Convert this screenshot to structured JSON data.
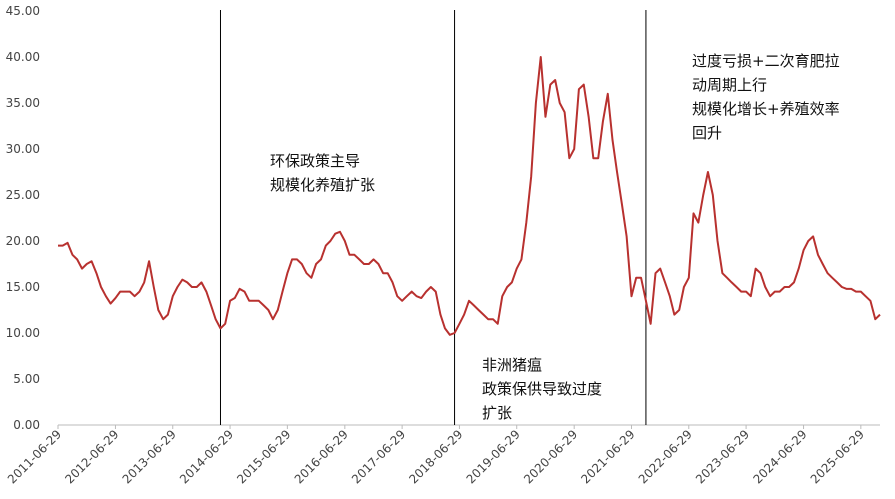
{
  "chart_data": {
    "type": "line",
    "color": "#b8312f",
    "ylim": [
      0,
      45
    ],
    "yticks": [
      {
        "value": 0,
        "label": "0.00"
      },
      {
        "value": 5,
        "label": "5.00"
      },
      {
        "value": 10,
        "label": "10.00"
      },
      {
        "value": 15,
        "label": "15.00"
      },
      {
        "value": 20,
        "label": "20.00"
      },
      {
        "value": 25,
        "label": "25.00"
      },
      {
        "value": 30,
        "label": "30.00"
      },
      {
        "value": 35,
        "label": "35.00"
      },
      {
        "value": 40,
        "label": "40.00"
      },
      {
        "value": 45,
        "label": "45.00"
      }
    ],
    "xlim": [
      "2011-06-29",
      "2025-10-29"
    ],
    "xticks": [
      "2011-06-29",
      "2012-06-29",
      "2013-06-29",
      "2014-06-29",
      "2015-06-29",
      "2016-06-29",
      "2017-06-29",
      "2018-06-29",
      "2019-06-29",
      "2020-06-29",
      "2021-06-29",
      "2022-06-29",
      "2023-06-29",
      "2024-06-29",
      "2025-06-29"
    ],
    "vlines": [
      "2014-04-29",
      "2018-05-29",
      "2021-09-29"
    ],
    "annotations": [
      [
        "环保政策主导",
        "规模化养殖扩张"
      ],
      [
        "非洲猪瘟",
        "政策保供导致过度",
        "扩张"
      ],
      [
        "过度亏损+二次育肥拉",
        "动周期上行",
        "规模化增长+养殖效率",
        "回升"
      ]
    ],
    "x": [
      "2011-06-29",
      "2011-07-29",
      "2011-08-29",
      "2011-09-29",
      "2011-10-29",
      "2011-11-29",
      "2011-12-29",
      "2012-01-29",
      "2012-02-29",
      "2012-03-29",
      "2012-04-29",
      "2012-05-29",
      "2012-06-29",
      "2012-07-29",
      "2012-08-29",
      "2012-09-29",
      "2012-10-29",
      "2012-11-29",
      "2012-12-29",
      "2013-01-29",
      "2013-02-28",
      "2013-03-29",
      "2013-04-29",
      "2013-05-29",
      "2013-06-29",
      "2013-07-29",
      "2013-08-29",
      "2013-09-29",
      "2013-10-29",
      "2013-11-29",
      "2013-12-29",
      "2014-01-29",
      "2014-02-28",
      "2014-03-29",
      "2014-04-29",
      "2014-05-29",
      "2014-06-29",
      "2014-07-29",
      "2014-08-29",
      "2014-09-29",
      "2014-10-29",
      "2014-11-29",
      "2014-12-29",
      "2015-01-29",
      "2015-02-28",
      "2015-03-29",
      "2015-04-29",
      "2015-05-29",
      "2015-06-29",
      "2015-07-29",
      "2015-08-29",
      "2015-09-29",
      "2015-10-29",
      "2015-11-29",
      "2015-12-29",
      "2016-01-29",
      "2016-02-29",
      "2016-03-29",
      "2016-04-29",
      "2016-05-29",
      "2016-06-29",
      "2016-07-29",
      "2016-08-29",
      "2016-09-29",
      "2016-10-29",
      "2016-11-29",
      "2016-12-29",
      "2017-01-29",
      "2017-02-28",
      "2017-03-29",
      "2017-04-29",
      "2017-05-29",
      "2017-06-29",
      "2017-07-29",
      "2017-08-29",
      "2017-09-29",
      "2017-10-29",
      "2017-11-29",
      "2017-12-29",
      "2018-01-29",
      "2018-02-28",
      "2018-03-29",
      "2018-04-29",
      "2018-05-29",
      "2018-06-29",
      "2018-07-29",
      "2018-08-29",
      "2018-09-29",
      "2018-10-29",
      "2018-11-29",
      "2018-12-29",
      "2019-01-29",
      "2019-02-28",
      "2019-03-29",
      "2019-04-29",
      "2019-05-29",
      "2019-06-29",
      "2019-07-29",
      "2019-08-29",
      "2019-09-29",
      "2019-10-29",
      "2019-11-29",
      "2019-12-29",
      "2020-01-29",
      "2020-02-29",
      "2020-03-29",
      "2020-04-29",
      "2020-05-29",
      "2020-06-29",
      "2020-07-29",
      "2020-08-29",
      "2020-09-29",
      "2020-10-29",
      "2020-11-29",
      "2020-12-29",
      "2021-01-29",
      "2021-02-28",
      "2021-03-29",
      "2021-04-29",
      "2021-05-29",
      "2021-06-29",
      "2021-07-29",
      "2021-08-29",
      "2021-09-29",
      "2021-10-29",
      "2021-11-29",
      "2021-12-29",
      "2022-01-29",
      "2022-02-28",
      "2022-03-29",
      "2022-04-29",
      "2022-05-29",
      "2022-06-29",
      "2022-07-29",
      "2022-08-29",
      "2022-09-29",
      "2022-10-29",
      "2022-11-29",
      "2022-12-29",
      "2023-01-29",
      "2023-02-28",
      "2023-03-29",
      "2023-04-29",
      "2023-05-29",
      "2023-06-29",
      "2023-07-29",
      "2023-08-29",
      "2023-09-29",
      "2023-10-29",
      "2023-11-29",
      "2023-12-29",
      "2024-01-29",
      "2024-02-29",
      "2024-03-29",
      "2024-04-29",
      "2024-05-29",
      "2024-06-29",
      "2024-07-29",
      "2024-08-29",
      "2024-09-29",
      "2024-10-29",
      "2024-11-29",
      "2024-12-29",
      "2025-01-29",
      "2025-02-28",
      "2025-03-29",
      "2025-04-29",
      "2025-05-29",
      "2025-06-29",
      "2025-07-29",
      "2025-08-29",
      "2025-09-29",
      "2025-10-29"
    ],
    "values": [
      19.5,
      19.5,
      19.8,
      18.5,
      18.0,
      17.0,
      17.5,
      17.8,
      16.5,
      15.0,
      14.0,
      13.2,
      13.8,
      14.5,
      14.5,
      14.5,
      14.0,
      14.5,
      15.5,
      17.8,
      15.0,
      12.5,
      11.5,
      12.0,
      14.0,
      15.0,
      15.8,
      15.5,
      15.0,
      15.0,
      15.5,
      14.5,
      13.0,
      11.5,
      10.5,
      11.0,
      13.5,
      13.8,
      14.8,
      14.5,
      13.5,
      13.5,
      13.5,
      13.0,
      12.5,
      11.5,
      12.5,
      14.5,
      16.5,
      18.0,
      18.0,
      17.5,
      16.5,
      16.0,
      17.5,
      18.0,
      19.5,
      20.0,
      20.8,
      21.0,
      20.0,
      18.5,
      18.5,
      18.0,
      17.5,
      17.5,
      18.0,
      17.5,
      16.5,
      16.5,
      15.5,
      14.0,
      13.5,
      14.0,
      14.5,
      14.0,
      13.8,
      14.5,
      15.0,
      14.5,
      12.0,
      10.5,
      9.8,
      10.0,
      11.0,
      12.0,
      13.5,
      13.0,
      12.5,
      12.0,
      11.5,
      11.5,
      11.0,
      14.0,
      15.0,
      15.5,
      17.0,
      18.0,
      22.0,
      27.0,
      35.0,
      40.0,
      33.5,
      37.0,
      37.5,
      35.0,
      34.0,
      29.0,
      30.0,
      36.5,
      37.0,
      33.5,
      29.0,
      29.0,
      33.0,
      36.0,
      31.0,
      27.5,
      24.0,
      20.5,
      14.0,
      16.0,
      16.0,
      13.5,
      11.0,
      16.5,
      17.0,
      15.5,
      14.0,
      12.0,
      12.5,
      15.0,
      16.0,
      23.0,
      22.0,
      25.0,
      27.5,
      25.0,
      20.0,
      16.5,
      16.0,
      15.5,
      15.0,
      14.5,
      14.5,
      14.0,
      17.0,
      16.5,
      15.0,
      14.0,
      14.5,
      14.5,
      15.0,
      15.0,
      15.5,
      17.0,
      19.0,
      20.0,
      20.5,
      18.5,
      17.5,
      16.5,
      16.0,
      15.5,
      15.0,
      14.8,
      14.8,
      14.5,
      14.5,
      14.0,
      13.5,
      11.5,
      12.0
    ]
  }
}
